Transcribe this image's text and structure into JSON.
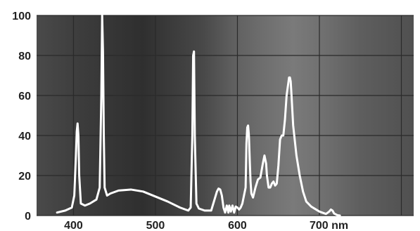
{
  "chart_data": {
    "type": "line",
    "title": "",
    "xlabel": "",
    "ylabel": "",
    "xlim": [
      355,
      815
    ],
    "ylim": [
      0,
      100
    ],
    "grid": true,
    "x_ticks": [
      {
        "value": 400,
        "label": "400"
      },
      {
        "value": 500,
        "label": "500"
      },
      {
        "value": 600,
        "label": "600"
      },
      {
        "value": 700,
        "label": "700 nm"
      }
    ],
    "y_ticks": [
      {
        "value": 0,
        "label": "0"
      },
      {
        "value": 20,
        "label": "20"
      },
      {
        "value": 40,
        "label": "40"
      },
      {
        "value": 60,
        "label": "60"
      },
      {
        "value": 80,
        "label": "80"
      },
      {
        "value": 100,
        "label": "100"
      }
    ],
    "colors": {
      "line": "#ffffff",
      "grid": "#2a2a2a",
      "text": "#222222"
    },
    "series": [
      {
        "x": [
          380,
          390,
          398,
          401,
          403,
          404,
          405,
          406,
          407,
          409,
          414,
          420,
          428,
          432,
          434,
          435,
          436,
          437,
          438,
          441,
          445,
          455,
          470,
          485,
          500,
          515,
          530,
          540,
          543,
          545,
          546,
          547,
          548,
          550,
          553,
          560,
          568,
          575,
          577,
          579,
          581,
          583,
          585,
          587,
          589,
          590,
          592,
          594,
          596,
          598,
          600,
          602,
          604,
          606,
          608,
          610,
          611,
          612,
          613,
          614,
          615,
          616,
          617,
          619,
          622,
          625,
          628,
          631,
          633,
          635,
          636,
          638,
          640,
          642,
          644,
          646,
          648,
          650,
          652,
          654,
          656,
          658,
          660,
          662,
          663,
          664,
          665,
          666,
          668,
          672,
          676,
          680,
          684,
          690,
          700,
          708,
          712,
          714,
          716,
          718,
          722,
          725
        ],
        "y": [
          1.5,
          2.5,
          4,
          10,
          30,
          42,
          46,
          40,
          20,
          6,
          5,
          6,
          8,
          14,
          60,
          100,
          82,
          40,
          14,
          10,
          11,
          12.5,
          13,
          12,
          9.5,
          7,
          4,
          2.5,
          4,
          40,
          80,
          82,
          40,
          6,
          3.5,
          2.5,
          2.5,
          12,
          13.5,
          13,
          10,
          4,
          1.5,
          5,
          1.5,
          5,
          2,
          5,
          1.5,
          4.5,
          4,
          3,
          4,
          6,
          10,
          14,
          36,
          44,
          45,
          40,
          28,
          17,
          11,
          9,
          14,
          18,
          19,
          26,
          30,
          26,
          20,
          14,
          14,
          16,
          17,
          15,
          16,
          25,
          38,
          40,
          40,
          48,
          60,
          66,
          69,
          69,
          67,
          60,
          45,
          30,
          20,
          12,
          7,
          4.5,
          2,
          0.8,
          2,
          3,
          2.5,
          1,
          0.2,
          0
        ]
      }
    ]
  }
}
